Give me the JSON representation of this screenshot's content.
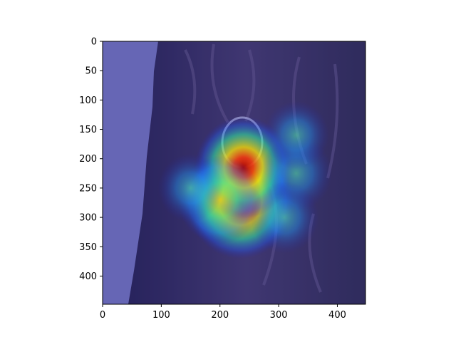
{
  "chart_data": {
    "type": "heatmap",
    "title": "",
    "xlabel": "",
    "ylabel": "",
    "xlim": [
      0,
      448
    ],
    "ylim": [
      448,
      0
    ],
    "y_inverted": true,
    "x_ticks": [
      0,
      100,
      200,
      300,
      400
    ],
    "y_ticks": [
      0,
      50,
      100,
      150,
      200,
      250,
      300,
      350,
      400
    ],
    "x_tick_labels": [
      "0",
      "100",
      "200",
      "300",
      "400"
    ],
    "y_tick_labels": [
      "0",
      "50",
      "100",
      "150",
      "200",
      "250",
      "300",
      "350",
      "400"
    ],
    "colormap": "jet",
    "grid": false,
    "background_image": "photo of a woodpecker clinging to a tree trunk at a nest hole",
    "colors": {
      "sky": "#7c7cc0",
      "bark_dark": "#2a2448",
      "bark_light": "#5a4f7a",
      "overlay_low": "#1a1a8c"
    },
    "hotspots": [
      {
        "x": 235,
        "y": 275,
        "value": 1.0
      },
      {
        "x": 240,
        "y": 215,
        "value": 0.85
      },
      {
        "x": 200,
        "y": 270,
        "value": 0.65
      },
      {
        "x": 330,
        "y": 225,
        "value": 0.45
      },
      {
        "x": 310,
        "y": 300,
        "value": 0.4
      },
      {
        "x": 330,
        "y": 160,
        "value": 0.35
      },
      {
        "x": 150,
        "y": 250,
        "value": 0.35
      }
    ]
  }
}
